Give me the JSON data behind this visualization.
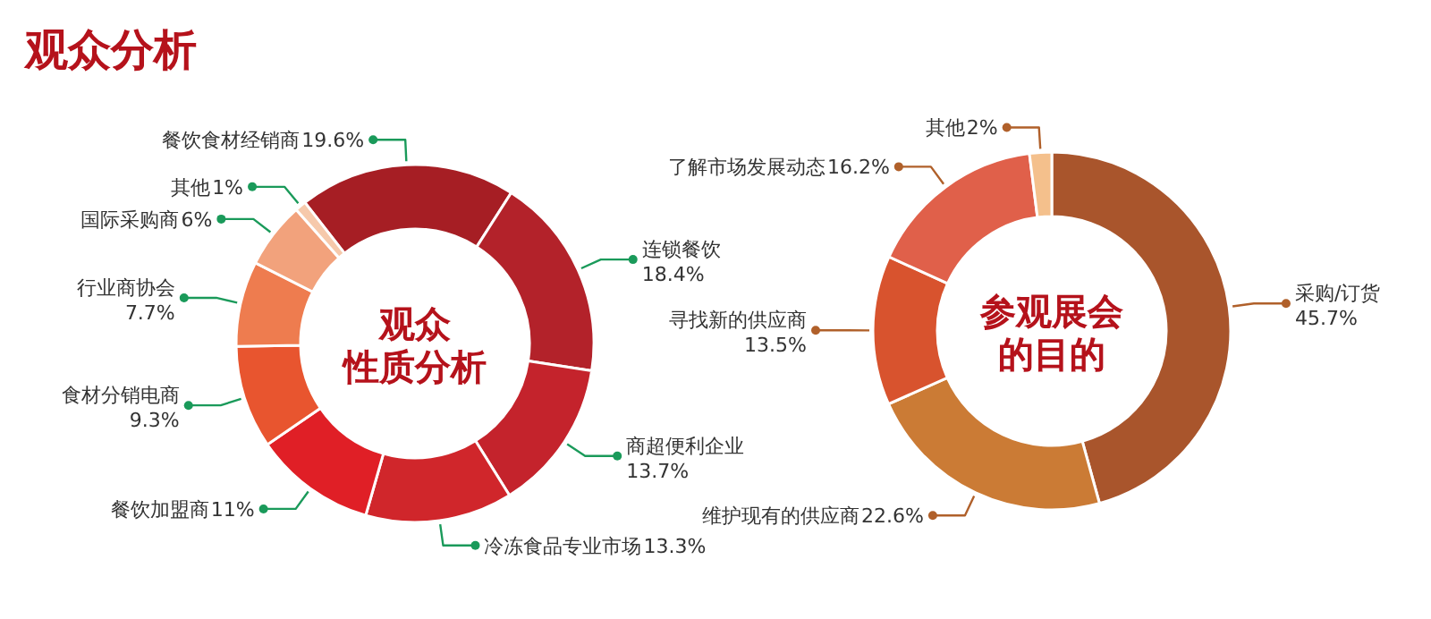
{
  "chart_data": [
    {
      "type": "donut",
      "title": "观众",
      "subtitle": "性质分析",
      "annotations": [
        "观众分析"
      ],
      "value_labels": [
        "19.6%",
        "18.4%",
        "13.7%",
        "13.3%",
        "11%",
        "9.3%",
        "7.7%",
        "6%",
        "1%"
      ],
      "categories": [
        "餐饮食材经销商",
        "连锁餐饮",
        "商超便利企业",
        "冷冻食品专业市场",
        "餐饮加盟商",
        "食材分销电商",
        "行业商协会",
        "国际采购商",
        "其他"
      ],
      "values": [
        19.6,
        18.4,
        13.7,
        13.3,
        11,
        9.3,
        7.7,
        6,
        1
      ],
      "colors": [
        "#a61e24",
        "#b3222a",
        "#c4232c",
        "#d0262b",
        "#e01f26",
        "#e8552f",
        "#ee7c4f",
        "#f2a27c",
        "#f6c9ab"
      ]
    },
    {
      "type": "donut",
      "title": "参观展会",
      "subtitle": "的目的",
      "value_labels": [
        "45.7%",
        "22.6%",
        "13.5%",
        "16.2%",
        "2%"
      ],
      "categories": [
        "采购/订货",
        "维护现有的供应商",
        "寻找新的供应商",
        "了解市场发展动态",
        "其他"
      ],
      "values": [
        45.7,
        22.6,
        13.5,
        16.2,
        2
      ],
      "colors": [
        "#a9552c",
        "#cb7b35",
        "#d8532e",
        "#e0604a",
        "#f4c08c"
      ]
    }
  ]
}
